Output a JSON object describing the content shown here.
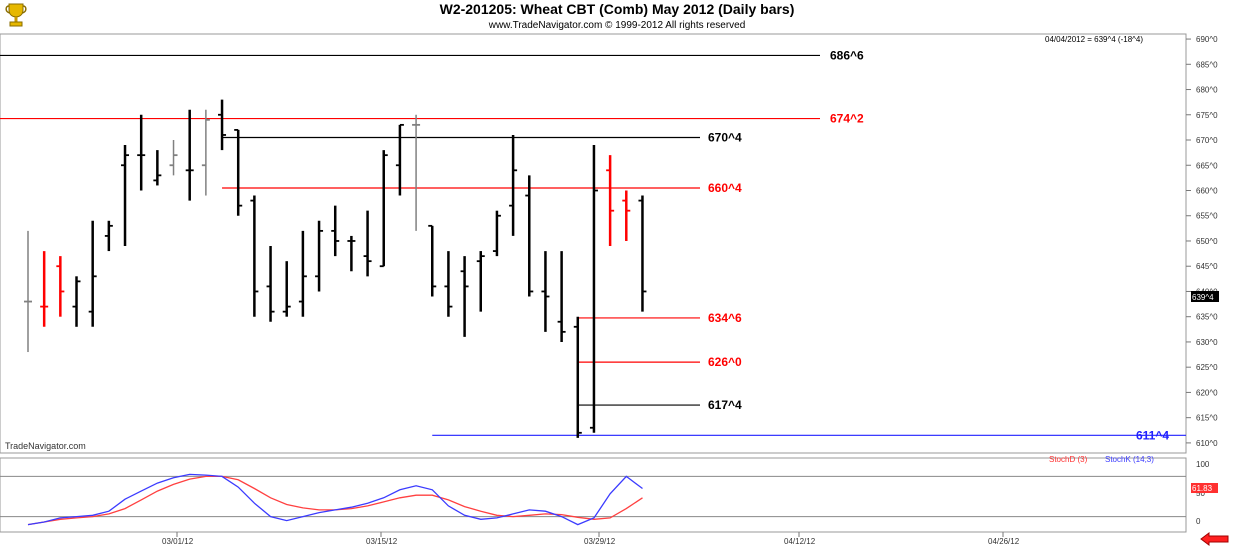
{
  "header": {
    "title": "W2-201205:  Wheat CBT (Comb) May 2012  (Daily bars)",
    "subtitle": "www.TradeNavigator.com © 1999-2012 All rights reserved",
    "readout": "04/04/2012 = 639^4 (-18^4)",
    "watermark": "TradeNavigator.com"
  },
  "colors": {
    "up_bar": "#000000",
    "down_bar": "#ff0000",
    "neutral_bar": "#808080",
    "stoch_d": "#ff4040",
    "stoch_k": "#3b3bff",
    "level_red": "#ff4040",
    "level_black": "#000000",
    "level_blue": "#2020ff"
  },
  "icons": {
    "logo": "trophy-icon",
    "nav": "arrow-left-icon"
  },
  "chart_data": [
    {
      "type": "ohlc",
      "title": "W2-201205:  Wheat CBT (Comb) May 2012  (Daily bars)",
      "ylim": [
        608,
        691
      ],
      "yticks": [
        "690^0",
        "685^0",
        "680^0",
        "675^0",
        "670^0",
        "665^0",
        "660^0",
        "655^0",
        "650^0",
        "645^0",
        "640^0",
        "635^0",
        "630^0",
        "625^0",
        "620^0",
        "615^0",
        "610^0"
      ],
      "xticks": [
        "03/01/12",
        "03/15/12",
        "03/29/12",
        "04/12/12",
        "04/26/12"
      ],
      "last_price_label": "639^4",
      "bars": [
        {
          "o": 638,
          "h": 652,
          "l": 628,
          "c": 638,
          "color": "gray"
        },
        {
          "o": 637,
          "h": 648,
          "l": 633,
          "c": 637,
          "color": "red"
        },
        {
          "o": 645,
          "h": 647,
          "l": 635,
          "c": 640,
          "color": "red"
        },
        {
          "o": 637,
          "h": 643,
          "l": 633,
          "c": 642,
          "color": "black"
        },
        {
          "o": 636,
          "h": 654,
          "l": 633,
          "c": 643,
          "color": "black"
        },
        {
          "o": 651,
          "h": 654,
          "l": 648,
          "c": 653,
          "color": "black"
        },
        {
          "o": 665,
          "h": 669,
          "l": 649,
          "c": 667,
          "color": "black"
        },
        {
          "o": 667,
          "h": 675,
          "l": 660,
          "c": 667,
          "color": "black"
        },
        {
          "o": 662,
          "h": 668,
          "l": 661,
          "c": 663,
          "color": "black"
        },
        {
          "o": 665,
          "h": 670,
          "l": 663,
          "c": 667,
          "color": "gray"
        },
        {
          "o": 664,
          "h": 676,
          "l": 658,
          "c": 664,
          "color": "black"
        },
        {
          "o": 665,
          "h": 676,
          "l": 659,
          "c": 674,
          "color": "gray"
        },
        {
          "o": 675,
          "h": 678,
          "l": 668,
          "c": 671,
          "color": "black"
        },
        {
          "o": 672,
          "h": 672,
          "l": 655,
          "c": 657,
          "color": "black"
        },
        {
          "o": 658,
          "h": 659,
          "l": 635,
          "c": 640,
          "color": "black"
        },
        {
          "o": 641,
          "h": 649,
          "l": 634,
          "c": 636,
          "color": "black"
        },
        {
          "o": 636,
          "h": 646,
          "l": 635,
          "c": 637,
          "color": "black"
        },
        {
          "o": 638,
          "h": 652,
          "l": 635,
          "c": 643,
          "color": "black"
        },
        {
          "o": 643,
          "h": 654,
          "l": 640,
          "c": 652,
          "color": "black"
        },
        {
          "o": 652,
          "h": 657,
          "l": 647,
          "c": 650,
          "color": "black"
        },
        {
          "o": 650,
          "h": 651,
          "l": 644,
          "c": 650,
          "color": "black"
        },
        {
          "o": 647,
          "h": 656,
          "l": 643,
          "c": 646,
          "color": "black"
        },
        {
          "o": 645,
          "h": 668,
          "l": 645,
          "c": 667,
          "color": "black"
        },
        {
          "o": 665,
          "h": 673,
          "l": 659,
          "c": 673,
          "color": "black"
        },
        {
          "o": 673,
          "h": 675,
          "l": 652,
          "c": 673,
          "color": "gray"
        },
        {
          "o": 653,
          "h": 653,
          "l": 639,
          "c": 641,
          "color": "black"
        },
        {
          "o": 641,
          "h": 648,
          "l": 635,
          "c": 637,
          "color": "black"
        },
        {
          "o": 644,
          "h": 647,
          "l": 631,
          "c": 641,
          "color": "black"
        },
        {
          "o": 646,
          "h": 648,
          "l": 636,
          "c": 647,
          "color": "black"
        },
        {
          "o": 648,
          "h": 656,
          "l": 647,
          "c": 655,
          "color": "black"
        },
        {
          "o": 657,
          "h": 671,
          "l": 651,
          "c": 664,
          "color": "black"
        },
        {
          "o": 659,
          "h": 663,
          "l": 639,
          "c": 640,
          "color": "black"
        },
        {
          "o": 640,
          "h": 648,
          "l": 632,
          "c": 639,
          "color": "black"
        },
        {
          "o": 634,
          "h": 648,
          "l": 630,
          "c": 632,
          "color": "black"
        },
        {
          "o": 633,
          "h": 635,
          "l": 611,
          "c": 612,
          "color": "black"
        },
        {
          "o": 613,
          "h": 669,
          "l": 612,
          "c": 660,
          "color": "black"
        },
        {
          "o": 664,
          "h": 667,
          "l": 649,
          "c": 656,
          "color": "red"
        },
        {
          "o": 658,
          "h": 660,
          "l": 650,
          "c": 656,
          "color": "red"
        },
        {
          "o": 658,
          "h": 659,
          "l": 636,
          "c": 640,
          "color": "black"
        }
      ],
      "levels": [
        {
          "label": "686^6",
          "value": 686.75,
          "color": "black",
          "from_bar": -1
        },
        {
          "label": "674^2",
          "value": 674.25,
          "color": "red",
          "from_bar": -1
        },
        {
          "label": "670^4",
          "value": 670.5,
          "color": "black",
          "from_bar": 12
        },
        {
          "label": "660^4",
          "value": 660.5,
          "color": "red",
          "from_bar": 12
        },
        {
          "label": "634^6",
          "value": 634.75,
          "color": "red",
          "from_bar": 34
        },
        {
          "label": "626^0",
          "value": 626.0,
          "color": "red",
          "from_bar": 34
        },
        {
          "label": "617^4",
          "value": 617.5,
          "color": "black",
          "from_bar": 34
        },
        {
          "label": "611^4",
          "value": 611.5,
          "color": "blue",
          "from_bar": 25
        }
      ]
    },
    {
      "type": "line",
      "ylim": [
        0,
        100
      ],
      "yticks": [
        "100",
        "50",
        "0"
      ],
      "legend": [
        "StochD (3)",
        "StochK (14,3)"
      ],
      "last_value_label": "61.83",
      "series": [
        {
          "name": "StochD (3)",
          "values": [
            8,
            12,
            16,
            18,
            20,
            24,
            32,
            45,
            58,
            68,
            76,
            80,
            80,
            75,
            62,
            48,
            38,
            33,
            30,
            30,
            32,
            36,
            42,
            48,
            52,
            52,
            45,
            35,
            28,
            22,
            20,
            22,
            24,
            23,
            19,
            16,
            18,
            32,
            48
          ]
        },
        {
          "name": "StochK (14,3)",
          "values": [
            8,
            12,
            18,
            20,
            22,
            28,
            46,
            58,
            70,
            78,
            83,
            82,
            80,
            64,
            40,
            20,
            14,
            20,
            26,
            30,
            34,
            40,
            48,
            60,
            66,
            60,
            36,
            22,
            16,
            18,
            24,
            30,
            28,
            20,
            8,
            18,
            54,
            80,
            62
          ]
        }
      ]
    }
  ]
}
